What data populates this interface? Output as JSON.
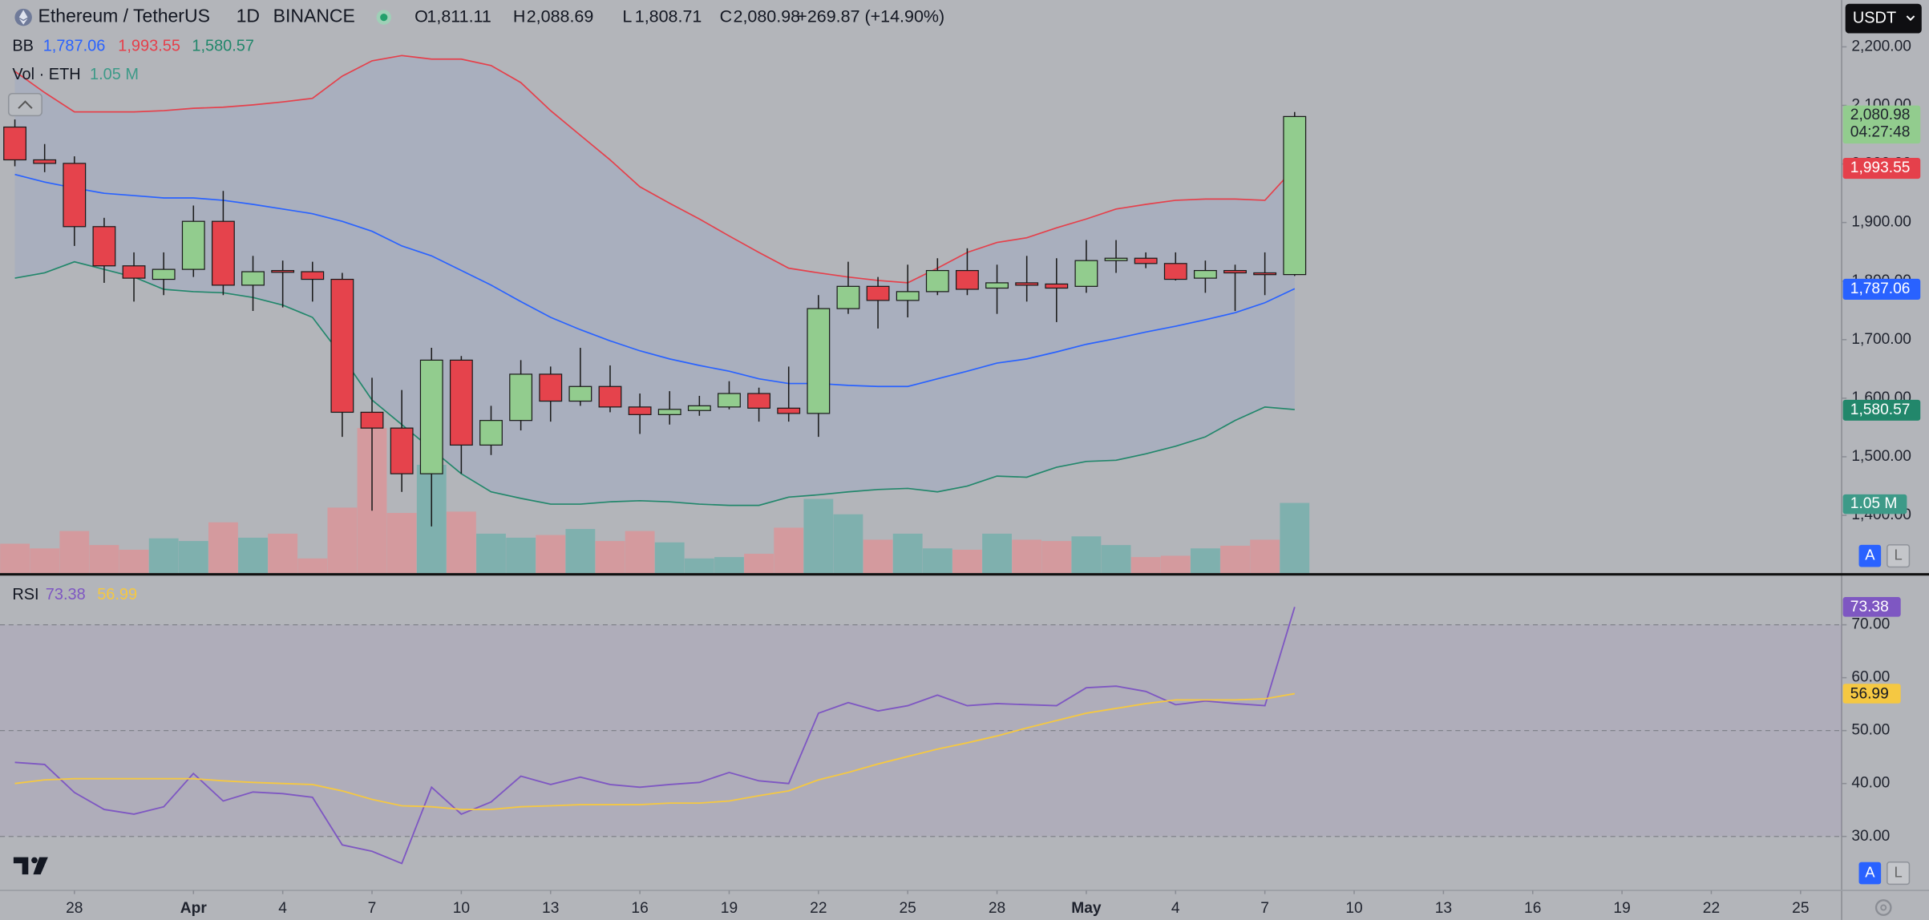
{
  "header": {
    "symbol": "Ethereum / TetherUS",
    "interval": "1D",
    "exchange": "BINANCE",
    "ohlc": [
      {
        "label": "O",
        "value": "1,811.11"
      },
      {
        "label": "H",
        "value": "2,088.69"
      },
      {
        "label": "L",
        "value": "1,808.71"
      },
      {
        "label": "C",
        "value": "2,080.98"
      }
    ],
    "change": "+269.87 (+14.90%)",
    "currency": "USDT",
    "countdown": "04:27:48"
  },
  "controls": {
    "auto": "A",
    "log": "L"
  },
  "chart_data": [
    {
      "type": "candlestick",
      "up_color": "#92cc8e",
      "down_color": "#e5434c",
      "open": [
        2063,
        2007,
        2001,
        1893,
        1826,
        1803,
        1820,
        1902,
        1793,
        1818,
        1816,
        1803,
        1576,
        1549,
        1471,
        1665,
        1520,
        1562,
        1641,
        1595,
        1620,
        1585,
        1572,
        1579,
        1585,
        1608,
        1583,
        1574,
        1753,
        1791,
        1767,
        1782,
        1818,
        1788,
        1797,
        1795,
        1791,
        1835,
        1839,
        1830,
        1805,
        1818,
        1814,
        1811.11
      ],
      "high": [
        2076,
        2034,
        2013,
        1908,
        1849,
        1849,
        1929,
        1954,
        1843,
        1835,
        1833,
        1814,
        1635,
        1614,
        1686,
        1672,
        1587,
        1665,
        1654,
        1686,
        1656,
        1608,
        1612,
        1604,
        1629,
        1618,
        1654,
        1776,
        1833,
        1807,
        1828,
        1839,
        1856,
        1828,
        1843,
        1839,
        1870,
        1870,
        1849,
        1849,
        1835,
        1828,
        1849,
        2088.69
      ],
      "low": [
        1996,
        1986,
        1860,
        1797,
        1765,
        1776,
        1807,
        1776,
        1749,
        1755,
        1765,
        1534,
        1408,
        1440,
        1381,
        1471,
        1503,
        1545,
        1560,
        1587,
        1576,
        1539,
        1555,
        1570,
        1581,
        1560,
        1560,
        1534,
        1744,
        1719,
        1738,
        1776,
        1776,
        1744,
        1765,
        1730,
        1780,
        1814,
        1822,
        1801,
        1780,
        1749,
        1776,
        1808.71
      ],
      "close": [
        2007,
        2001,
        1893,
        1826,
        1805,
        1820,
        1902,
        1793,
        1816,
        1815,
        1803,
        1576,
        1549,
        1471,
        1665,
        1520,
        1562,
        1641,
        1595,
        1620,
        1585,
        1572,
        1581,
        1587,
        1608,
        1583,
        1574,
        1753,
        1791,
        1767,
        1782,
        1818,
        1786,
        1797,
        1793,
        1788,
        1835,
        1839,
        1830,
        1803,
        1818,
        1814,
        1811,
        2080.98
      ],
      "bb": {
        "name": "BB",
        "series": [
          {
            "color": "#2962ff",
            "values": [
              1982,
              1969,
              1959,
              1950,
              1946,
              1942,
              1942,
              1938,
              1931,
              1923,
              1915,
              1902,
              1885,
              1860,
              1843,
              1818,
              1793,
              1765,
              1738,
              1717,
              1698,
              1681,
              1667,
              1656,
              1646,
              1633,
              1625,
              1625,
              1622,
              1620,
              1620,
              1633,
              1646,
              1660,
              1667,
              1679,
              1692,
              1702,
              1713,
              1723,
              1734,
              1746,
              1763,
              1787.06
            ],
            "last_label": "1,787.06"
          },
          {
            "color": "#e5404b",
            "values": [
              2158,
              2122,
              2089,
              2089,
              2089,
              2091,
              2095,
              2097,
              2101,
              2106,
              2112,
              2150,
              2176,
              2185,
              2179,
              2179,
              2168,
              2139,
              2091,
              2049,
              2007,
              1961,
              1933,
              1906,
              1877,
              1849,
              1822,
              1814,
              1807,
              1801,
              1797,
              1822,
              1849,
              1866,
              1874,
              1891,
              1906,
              1923,
              1931,
              1938,
              1940,
              1940,
              1938,
              1993.55
            ],
            "last_label": "1,993.55"
          },
          {
            "color": "#22876b",
            "values": [
              1805,
              1814,
              1833,
              1820,
              1807,
              1786,
              1782,
              1780,
              1772,
              1759,
              1738,
              1671,
              1597,
              1555,
              1513,
              1471,
              1440,
              1429,
              1419,
              1419,
              1423,
              1425,
              1423,
              1419,
              1417,
              1417,
              1431,
              1435,
              1440,
              1444,
              1446,
              1440,
              1450,
              1467,
              1465,
              1482,
              1492,
              1494,
              1505,
              1518,
              1534,
              1562,
              1585,
              1580.57
            ],
            "last_label": "1,580.57"
          }
        ]
      },
      "volume": {
        "name": "Vol · ETH",
        "up_color": "#7fb0ae",
        "down_color": "#d49a9e",
        "badge_color": "#3d9a88",
        "values": [
          0.44,
          0.37,
          0.63,
          0.42,
          0.35,
          0.52,
          0.48,
          0.76,
          0.53,
          0.59,
          0.22,
          0.98,
          2.17,
          0.9,
          1.62,
          0.92,
          0.59,
          0.53,
          0.57,
          0.66,
          0.48,
          0.63,
          0.46,
          0.22,
          0.24,
          0.29,
          0.68,
          1.11,
          0.88,
          0.5,
          0.59,
          0.37,
          0.35,
          0.59,
          0.5,
          0.48,
          0.55,
          0.42,
          0.24,
          0.26,
          0.37,
          0.41,
          0.5,
          1.05
        ],
        "last_label": "1.05 M"
      },
      "xlim": [
        -0.5,
        61.38
      ],
      "ylim": [
        1301.3,
        2279.8
      ],
      "yticks": [
        {
          "value": 2200,
          "label": "2,200.00"
        },
        {
          "value": 2100,
          "label": "2,100.00"
        },
        {
          "value": 2000,
          "label": "2,000.00"
        },
        {
          "value": 1900,
          "label": "1,900.00"
        },
        {
          "value": 1800,
          "label": "1,800.00"
        },
        {
          "value": 1700,
          "label": "1,700.00"
        },
        {
          "value": 1600,
          "label": "1,600.00"
        },
        {
          "value": 1500,
          "label": "1,500.00"
        },
        {
          "value": 1400,
          "label": "1,400.00"
        }
      ],
      "xticks": [
        {
          "value": 2,
          "label": "28"
        },
        {
          "value": 6,
          "label": "Apr"
        },
        {
          "value": 9,
          "label": "4"
        },
        {
          "value": 12,
          "label": "7"
        },
        {
          "value": 15,
          "label": "10"
        },
        {
          "value": 18,
          "label": "13"
        },
        {
          "value": 21,
          "label": "16"
        },
        {
          "value": 24,
          "label": "19"
        },
        {
          "value": 27,
          "label": "22"
        },
        {
          "value": 30,
          "label": "25"
        },
        {
          "value": 33,
          "label": "28"
        },
        {
          "value": 36,
          "label": "May"
        },
        {
          "value": 39,
          "label": "4"
        },
        {
          "value": 42,
          "label": "7"
        },
        {
          "value": 45,
          "label": "10"
        },
        {
          "value": 48,
          "label": "13"
        },
        {
          "value": 51,
          "label": "16"
        },
        {
          "value": 54,
          "label": "19"
        },
        {
          "value": 57,
          "label": "22"
        },
        {
          "value": 60,
          "label": "25"
        }
      ]
    },
    {
      "type": "line",
      "name": "RSI",
      "series": [
        {
          "color": "#7e57c2",
          "values": [
            44,
            43.6,
            38.3,
            35.1,
            34.2,
            35.6,
            41.9,
            36.7,
            38.4,
            38.1,
            37.4,
            28.4,
            27.2,
            24.9,
            39.3,
            34.2,
            36.5,
            41.4,
            39.8,
            41.2,
            39.8,
            39.3,
            39.8,
            40.2,
            42.1,
            40.5,
            40,
            53.3,
            55.3,
            53.7,
            54.7,
            56.7,
            54.7,
            55.1,
            54.9,
            54.7,
            58.1,
            58.4,
            57.4,
            54.9,
            55.6,
            55.1,
            54.7,
            73.38
          ]
        },
        {
          "color": "#f5c842",
          "values": [
            40,
            40.7,
            40.9,
            40.9,
            40.9,
            40.9,
            40.9,
            40.5,
            40.2,
            40,
            39.8,
            38.6,
            37,
            35.8,
            35.6,
            35.1,
            35.1,
            35.6,
            35.8,
            36,
            36,
            36,
            36.3,
            36.3,
            36.7,
            37.7,
            38.6,
            40.7,
            42.1,
            43.7,
            45.1,
            46.5,
            47.7,
            49,
            50.5,
            51.9,
            53.3,
            54.2,
            55.1,
            55.8,
            55.8,
            55.8,
            56,
            56.99
          ]
        }
      ],
      "ylim": [
        19.8,
        79.3
      ],
      "yticks": [
        {
          "value": 70,
          "label": "70.00"
        },
        {
          "value": 60,
          "label": "60.00"
        },
        {
          "value": 50,
          "label": "50.00"
        },
        {
          "value": 40,
          "label": "40.00"
        },
        {
          "value": 30,
          "label": "30.00"
        }
      ],
      "levels": [
        70,
        50,
        30
      ]
    }
  ]
}
